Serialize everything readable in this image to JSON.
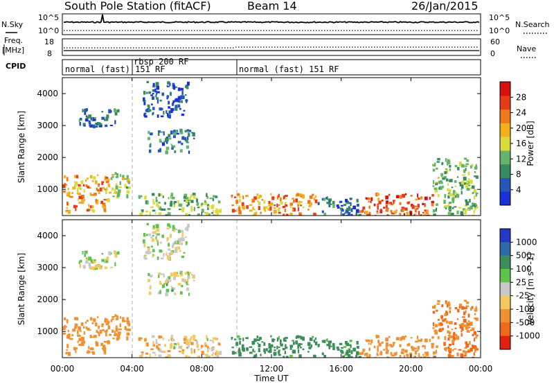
{
  "header": {
    "station": "South Pole Station (fitACF)",
    "beam": "Beam 14",
    "date": "26/Jan/2015"
  },
  "noise_panel": {
    "left_label": "N.Sky",
    "right_label": "N.Search",
    "ticks_left": [
      "10^5",
      "10^0"
    ],
    "ticks_right": [
      "10^5",
      "10^0"
    ]
  },
  "freq_panel": {
    "label_line1": "Freq.",
    "label_line2": "[MHz]",
    "ticks_left": [
      "18",
      "8"
    ],
    "ticks_right": [
      "60",
      "0"
    ],
    "right_label": "Nave"
  },
  "cpid_panel": {
    "label": "CPID",
    "segments": [
      {
        "start_hour": 0,
        "end_hour": 3.9,
        "name": "normal (fast) 151 RF"
      },
      {
        "start_hour": 3.9,
        "end_hour": 9.9,
        "name": "rbsp 200 RF"
      },
      {
        "start_hour": 9.9,
        "end_hour": 24,
        "name": "normal (fast) 151 RF"
      }
    ]
  },
  "x_axis": {
    "label": "Time UT",
    "ticks": [
      "00:00",
      "04:00",
      "08:00",
      "12:00",
      "16:00",
      "20:00",
      "00:00"
    ]
  },
  "power_panel": {
    "ylabel": "Slant Range [km]",
    "yticks": [
      "1000",
      "2000",
      "3000",
      "4000"
    ],
    "colorbar_label": "Power [dB]",
    "colorbar_ticks": [
      "4",
      "8",
      "12",
      "16",
      "20",
      "24",
      "28"
    ],
    "colors": [
      "#1a2fd6",
      "#2457b8",
      "#3b8a5f",
      "#64b46a",
      "#d8dc3a",
      "#f2b01a",
      "#f07a1a",
      "#e83a14",
      "#d81010"
    ]
  },
  "velocity_panel": {
    "ylabel": "Slant Range [km]",
    "yticks": [
      "1000",
      "2000",
      "3000",
      "4000"
    ],
    "colorbar_label": "Velocity [m s^-1]",
    "colorbar_ticks": [
      "1000",
      "500",
      "100",
      "25",
      "-25",
      "-100",
      "-500",
      "-1000"
    ],
    "colors": [
      "#2438c8",
      "#2e6aa8",
      "#3e8c5a",
      "#5fc24a",
      "#c8c8c8",
      "#f2c860",
      "#f09030",
      "#f06818",
      "#e02010"
    ]
  },
  "chart_data": {
    "type": "heatmap",
    "title": "South Pole Station (fitACF)",
    "subtitle": "Beam 14",
    "date": "26/Jan/2015",
    "xlabel": "Time UT",
    "x_range_hours": [
      0,
      24
    ],
    "ylabel": "Slant Range [km]",
    "ylim": [
      180,
      4500
    ],
    "panels": [
      {
        "name": "Power [dB]",
        "color_range": [
          0,
          30
        ]
      },
      {
        "name": "Velocity [m s^-1]",
        "color_range": [
          -1000,
          1000
        ]
      }
    ],
    "echo_regions": [
      {
        "t0": 0.0,
        "t1": 2.6,
        "r0": 300,
        "r1": 1500,
        "power": 20,
        "velocity": -200
      },
      {
        "t0": 2.6,
        "t1": 3.8,
        "r0": 800,
        "r1": 1600,
        "power": 14,
        "velocity": -250
      },
      {
        "t0": 0.9,
        "t1": 3.4,
        "r0": 3000,
        "r1": 3550,
        "power": 6,
        "velocity": 0
      },
      {
        "t0": 4.8,
        "t1": 7.6,
        "r0": 2200,
        "r1": 2900,
        "power": 8,
        "velocity": 20
      },
      {
        "t0": 4.6,
        "t1": 7.2,
        "r0": 3300,
        "r1": 4400,
        "power": 5,
        "velocity": 0
      },
      {
        "t0": 4.2,
        "t1": 9.0,
        "r0": 200,
        "r1": 900,
        "power": 12,
        "velocity": -60
      },
      {
        "t0": 9.6,
        "t1": 14.5,
        "r0": 200,
        "r1": 900,
        "power": 20,
        "velocity": 180
      },
      {
        "t0": 14.5,
        "t1": 17.0,
        "r0": 200,
        "r1": 800,
        "power": 6,
        "velocity": 150
      },
      {
        "t0": 17.0,
        "t1": 21.2,
        "r0": 200,
        "r1": 900,
        "power": 24,
        "velocity": -300
      },
      {
        "t0": 21.2,
        "t1": 23.8,
        "r0": 200,
        "r1": 2000,
        "power": 12,
        "velocity": -500
      }
    ]
  }
}
